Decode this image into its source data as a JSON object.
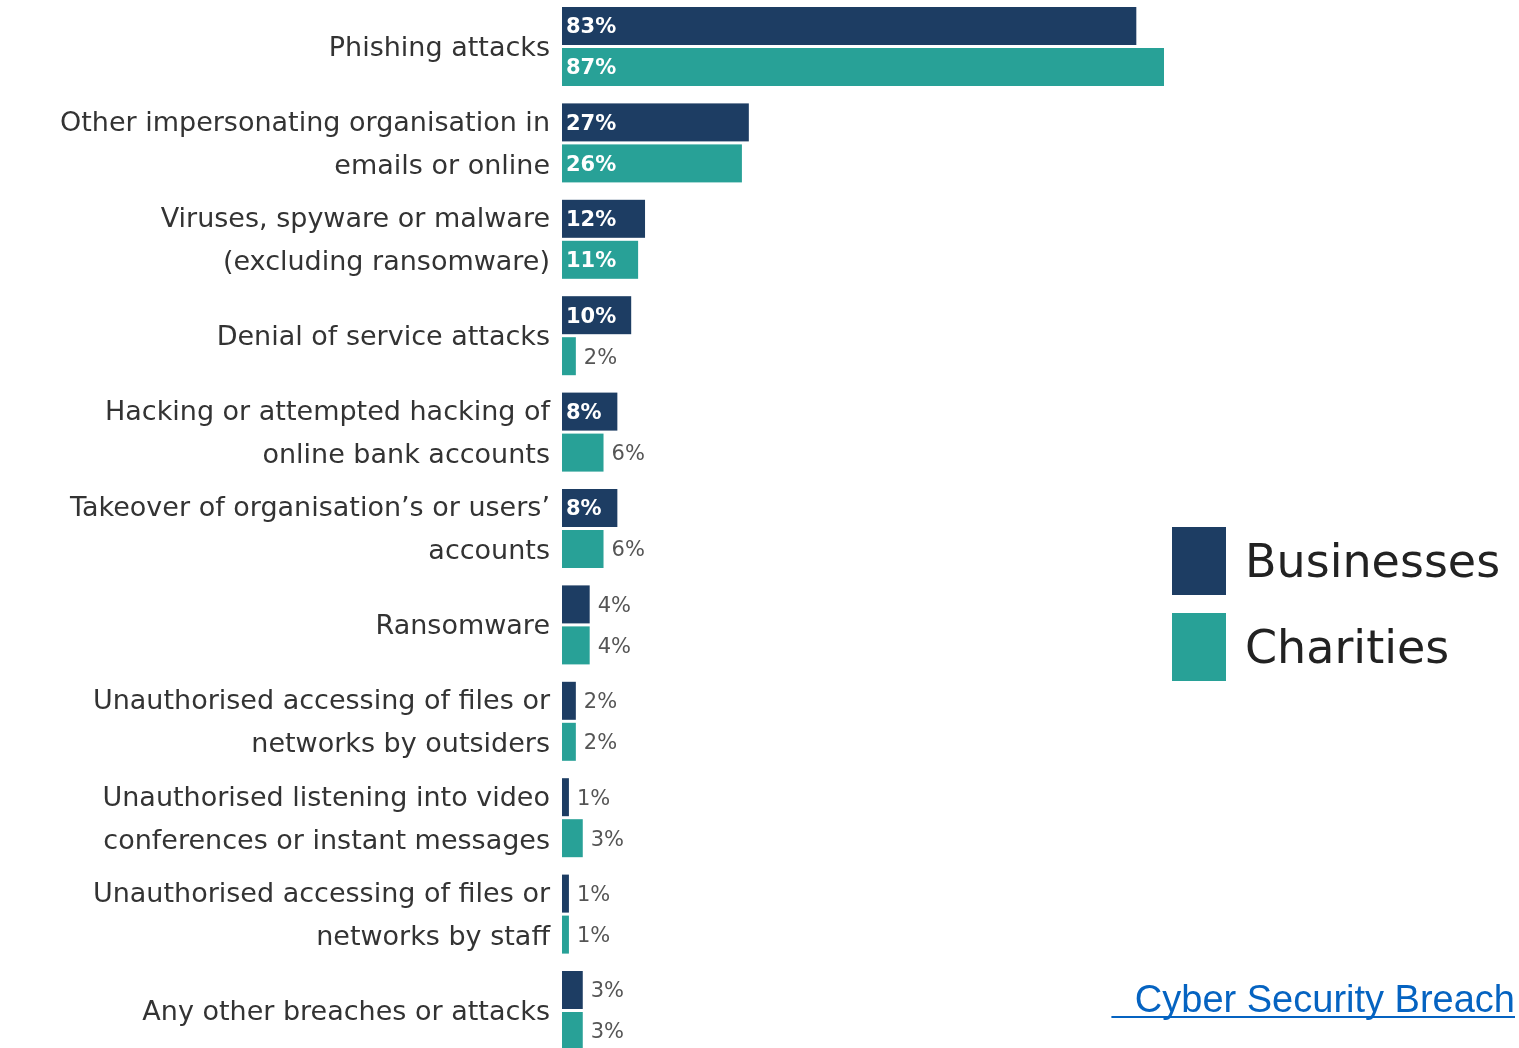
{
  "chart_data": {
    "type": "bar",
    "orientation": "horizontal",
    "legend": "right",
    "categories": [
      "Phishing attacks",
      "Other impersonating organisation in emails or online",
      "Viruses, spyware or malware (excluding ransomware)",
      "Denial of service attacks",
      "Hacking or attempted hacking of online bank accounts",
      "Takeover of organisation’s or users’ accounts",
      "Ransomware",
      "Unauthorised accessing of files or networks by outsiders",
      "Unauthorised listening into video conferences or instant messages",
      "Unauthorised accessing of files or networks by staff",
      "Any other breaches or attacks"
    ],
    "series": [
      {
        "name": "Businesses",
        "color": "#1d3d63",
        "values": [
          83,
          27,
          12,
          10,
          8,
          8,
          4,
          2,
          1,
          1,
          3
        ],
        "value_labels": [
          "83%",
          "27%",
          "12%",
          "10%",
          "8%",
          "8%",
          "4%",
          "2%",
          "1%",
          "1%",
          "3%"
        ]
      },
      {
        "name": "Charities",
        "color": "#28a197",
        "values": [
          87,
          26,
          11,
          2,
          6,
          6,
          4,
          2,
          3,
          1,
          3
        ],
        "value_labels": [
          "87%",
          "26%",
          "11%",
          "2%",
          "6%",
          "6%",
          "4%",
          "2%",
          "3%",
          "1%",
          "3%"
        ]
      }
    ],
    "annotations": [
      "Cyber Security Breach"
    ]
  }
}
